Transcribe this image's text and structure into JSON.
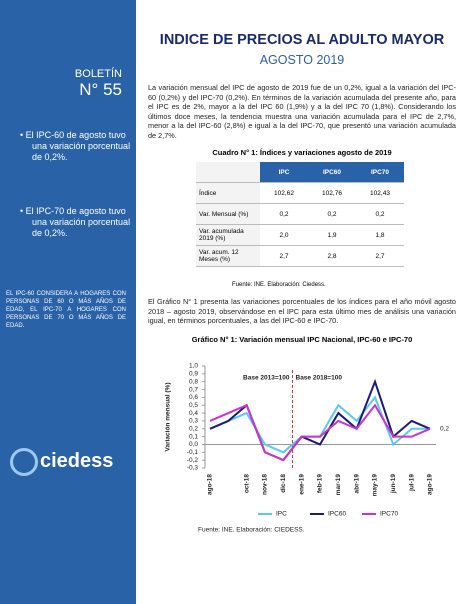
{
  "header": {
    "title": "INDICE DE PRECIOS AL ADULTO MAYOR",
    "subtitle": "AGOSTO 2019"
  },
  "sidebar": {
    "label": "BOLETÍN",
    "number": "N° 55",
    "bullets": [
      "El IPC-60 de agosto tuvo una variación porcentual de 0,2%.",
      "El IPC-70 de agosto tuvo una variación porcentual de 0,2%."
    ],
    "note": "EL IPC-60 CONSIDERA A HOGARES CON PERSONAS DE 60 O MÁS AÑOS DE EDAD, EL IPC-70 A HOGARES CON PERSONAS DE 70 O MÁS AÑOS DE EDAD.",
    "logo": "ciedess"
  },
  "paragraphs": [
    "La variación mensual del IPC de agosto de 2019 fue de un 0,2%, igual a la variación del IPC-60 (0,2%) y del IPC-70 (0,2%). En términos de la variación acumulada del presente año, para el IPC es de 2%, mayor a la del IPC 60 (1,9%) y a la del IPC 70 (1,8%). Considerando los últimos doce meses, la tendencia muestra una variación acumulada para el IPC de 2,7%, menor a la del IPC-60 (2,8%) e igual a la del IPC-70, que presentó una variación acumulada de 2,7%.",
    "El Gráfico N° 1 presenta las variaciones porcentuales de los índices para el año móvil agosto 2018 – agosto 2019, observándose en el IPC para esta último mes de análisis una variación igual, en términos porcentuales, a las del IPC-60 e IPC-70."
  ],
  "table": {
    "title": "Cuadro N° 1: Índices y variaciones agosto de 2019",
    "header": [
      "IPC",
      "IPC60",
      "IPC70"
    ],
    "rows": [
      [
        "Índice",
        "102,62",
        "102,76",
        "102,43"
      ],
      [
        "Var. Mensual (%)",
        "0,2",
        "0,2",
        "0,2"
      ],
      [
        "Var. acumulada 2019 (%)",
        "2,0",
        "1,9",
        "1,8"
      ],
      [
        "Var. acum. 12 Meses (%)",
        "2,7",
        "2,8",
        "2,7"
      ]
    ],
    "source": "Fuente: INE. Elaboración: Ciedess."
  },
  "chart_data": {
    "type": "line",
    "title": "Gráfico N° 1: Variación mensual IPC Nacional, IPC-60 e IPC-70",
    "y_label": "Variación mensual (%)",
    "categories": [
      "ago-18",
      null,
      "oct-18",
      "nov-18",
      "dic-18",
      "ene-19",
      "feb-19",
      "mar-19",
      "abr-19",
      "may-19",
      "jun-19",
      "jul-19",
      "ago-19"
    ],
    "series": [
      {
        "name": "IPC",
        "color": "#5bc8ef",
        "values": [
          0.2,
          0.3,
          0.4,
          0.0,
          -0.1,
          0.1,
          0.1,
          0.5,
          0.3,
          0.6,
          0.0,
          0.2,
          0.2
        ]
      },
      {
        "name": "IPC60",
        "color": "#1c1c78",
        "values": [
          0.2,
          0.3,
          0.5,
          -0.1,
          -0.2,
          0.1,
          0.0,
          0.4,
          0.2,
          0.8,
          0.1,
          0.3,
          0.2
        ]
      },
      {
        "name": "IPC70",
        "color": "#cc33cc",
        "values": [
          0.3,
          0.4,
          0.5,
          -0.1,
          -0.2,
          0.1,
          0.1,
          0.3,
          0.2,
          0.5,
          0.1,
          0.1,
          0.2
        ]
      }
    ],
    "data_label": "0,2",
    "annotations": [
      "Base 2013=100",
      "Base 2018=100"
    ],
    "ylim": [
      -0.3,
      1.0
    ],
    "yticks": [
      {
        "value": 1.0,
        "label": "1,0"
      },
      {
        "value": 0.9,
        "label": "0,9"
      },
      {
        "value": 0.8,
        "label": "0,8"
      },
      {
        "value": 0.7,
        "label": "0,7"
      },
      {
        "value": 0.6,
        "label": "0,6"
      },
      {
        "value": 0.5,
        "label": "0,5"
      },
      {
        "value": 0.4,
        "label": "0,4"
      },
      {
        "value": 0.3,
        "label": "0,3"
      },
      {
        "value": 0.2,
        "label": "0,2"
      },
      {
        "value": 0.1,
        "label": "0,1"
      },
      {
        "value": 0.0,
        "label": "0,0"
      },
      {
        "value": -0.1,
        "label": "-0,1"
      },
      {
        "value": -0.2,
        "label": "-0,2"
      },
      {
        "value": -0.3,
        "label": "-0,3"
      }
    ],
    "source": "Fuente: INE. Elaboración: CIEDESS."
  }
}
